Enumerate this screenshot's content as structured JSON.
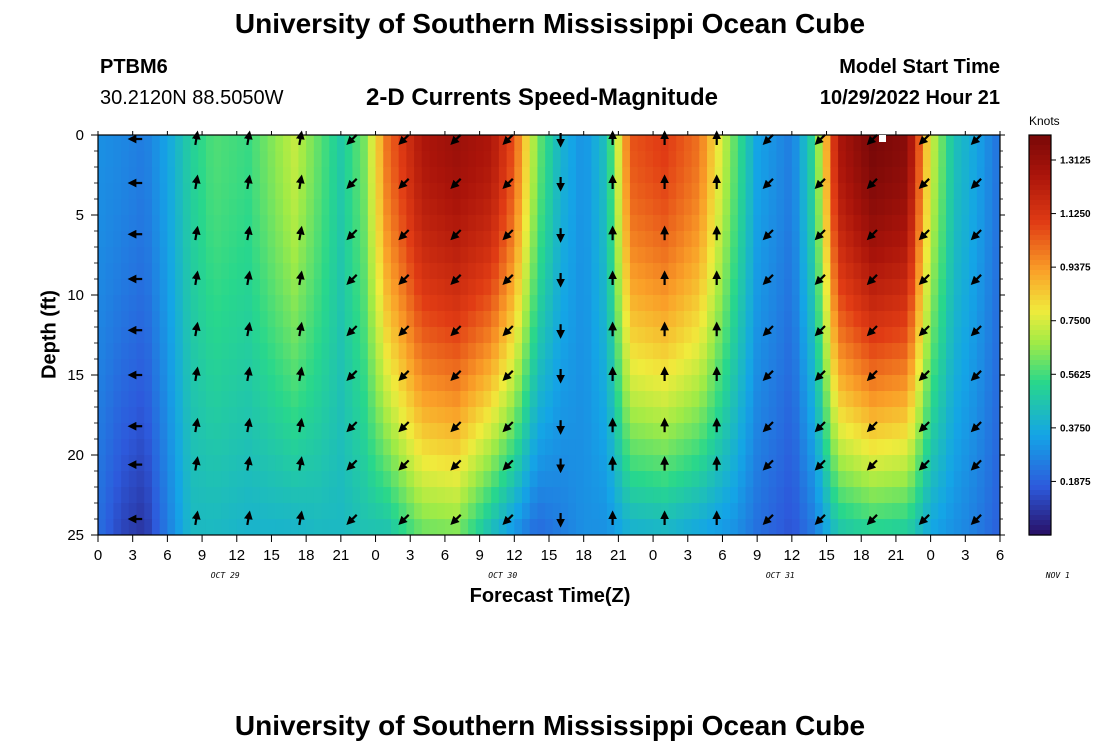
{
  "header": {
    "title": "University of Southern Mississippi Ocean Cube",
    "station_id": "PTBM6",
    "station_coords": "30.2120N  88.5050W",
    "subtitle": "2-D Currents Speed-Magnitude",
    "model_start_label": "Model Start Time",
    "model_start_value": "10/29/2022 Hour 21"
  },
  "footer": {
    "title": "University of Southern Mississippi Ocean Cube"
  },
  "chart_data": {
    "type": "heatmap",
    "title": "2-D Currents Speed-Magnitude",
    "xlabel": "Forecast Time(Z)",
    "ylabel": "Depth (ft)",
    "ylim": [
      0,
      25
    ],
    "y_ticks": [
      "0",
      "5",
      "10",
      "15",
      "20",
      "25"
    ],
    "x_ticks": [
      "0",
      "3",
      "6",
      "9",
      "12",
      "15",
      "18",
      "21",
      "0",
      "3",
      "6",
      "9",
      "12",
      "15",
      "18",
      "21",
      "0",
      "3",
      "6",
      "9",
      "12",
      "15",
      "18",
      "21",
      "0",
      "3",
      "6"
    ],
    "date_labels": [
      {
        "label": "OCT 29",
        "hour_index": 11
      },
      {
        "label": "OCT 30",
        "hour_index": 35
      },
      {
        "label": "OCT 31",
        "hour_index": 59
      },
      {
        "label": "NOV 1",
        "hour_index": 83
      }
    ],
    "hours_total": 78,
    "colorbar": {
      "unit": "Knots",
      "range": [
        0.0,
        1.4
      ],
      "tick_labels": [
        "1.3125",
        "1.1250",
        "0.9375",
        "0.7500",
        "0.5625",
        "0.3750",
        "0.1875"
      ],
      "tick_values": [
        1.3125,
        1.125,
        0.9375,
        0.75,
        0.5625,
        0.375,
        0.1875
      ]
    },
    "speed_profile": [
      {
        "hour": 0,
        "surface": 0.3,
        "bottom": 0.22
      },
      {
        "hour": 2,
        "surface": 0.28,
        "bottom": 0.12
      },
      {
        "hour": 4,
        "surface": 0.25,
        "bottom": 0.08
      },
      {
        "hour": 6,
        "surface": 0.35,
        "bottom": 0.25
      },
      {
        "hour": 8,
        "surface": 0.5,
        "bottom": 0.42
      },
      {
        "hour": 10,
        "surface": 0.58,
        "bottom": 0.42
      },
      {
        "hour": 13,
        "surface": 0.55,
        "bottom": 0.4
      },
      {
        "hour": 17,
        "surface": 0.72,
        "bottom": 0.4
      },
      {
        "hour": 19,
        "surface": 0.6,
        "bottom": 0.42
      },
      {
        "hour": 21,
        "surface": 0.48,
        "bottom": 0.42
      },
      {
        "hour": 23,
        "surface": 0.62,
        "bottom": 0.45
      },
      {
        "hour": 25,
        "surface": 1.0,
        "bottom": 0.45
      },
      {
        "hour": 28,
        "surface": 1.25,
        "bottom": 0.6
      },
      {
        "hour": 31,
        "surface": 1.3,
        "bottom": 0.62
      },
      {
        "hour": 34,
        "surface": 1.25,
        "bottom": 0.42
      },
      {
        "hour": 36,
        "surface": 1.05,
        "bottom": 0.3
      },
      {
        "hour": 38,
        "surface": 0.62,
        "bottom": 0.2
      },
      {
        "hour": 40,
        "surface": 0.4,
        "bottom": 0.25
      },
      {
        "hour": 42,
        "surface": 0.3,
        "bottom": 0.3
      },
      {
        "hour": 44,
        "surface": 0.45,
        "bottom": 0.3
      },
      {
        "hour": 46,
        "surface": 1.05,
        "bottom": 0.38
      },
      {
        "hour": 49,
        "surface": 1.1,
        "bottom": 0.4
      },
      {
        "hour": 52,
        "surface": 1.0,
        "bottom": 0.35
      },
      {
        "hour": 55,
        "surface": 0.6,
        "bottom": 0.3
      },
      {
        "hour": 57,
        "surface": 0.35,
        "bottom": 0.22
      },
      {
        "hour": 60,
        "surface": 0.25,
        "bottom": 0.15
      },
      {
        "hour": 62,
        "surface": 0.55,
        "bottom": 0.25
      },
      {
        "hour": 64,
        "surface": 1.25,
        "bottom": 0.45
      },
      {
        "hour": 67,
        "surface": 1.4,
        "bottom": 0.5
      },
      {
        "hour": 70,
        "surface": 1.35,
        "bottom": 0.48
      },
      {
        "hour": 72,
        "surface": 0.75,
        "bottom": 0.35
      },
      {
        "hour": 74,
        "surface": 0.45,
        "bottom": 0.3
      },
      {
        "hour": 76,
        "surface": 0.35,
        "bottom": 0.25
      },
      {
        "hour": 78,
        "surface": 0.22,
        "bottom": 0.18
      }
    ],
    "arrow_hours": [
      3.3,
      8.5,
      13,
      17.5,
      22,
      26.5,
      31,
      35.5,
      40,
      44.5,
      49,
      53.5,
      58,
      62.5,
      67,
      71.5,
      76
    ],
    "arrow_depths": [
      0,
      3,
      6.2,
      9,
      12.2,
      15,
      18.2,
      20.6,
      24
    ],
    "arrow_direction_deg_by_column": [
      180,
      80,
      80,
      80,
      225,
      225,
      225,
      225,
      270,
      90,
      90,
      90,
      225,
      225,
      225,
      225,
      225
    ]
  }
}
